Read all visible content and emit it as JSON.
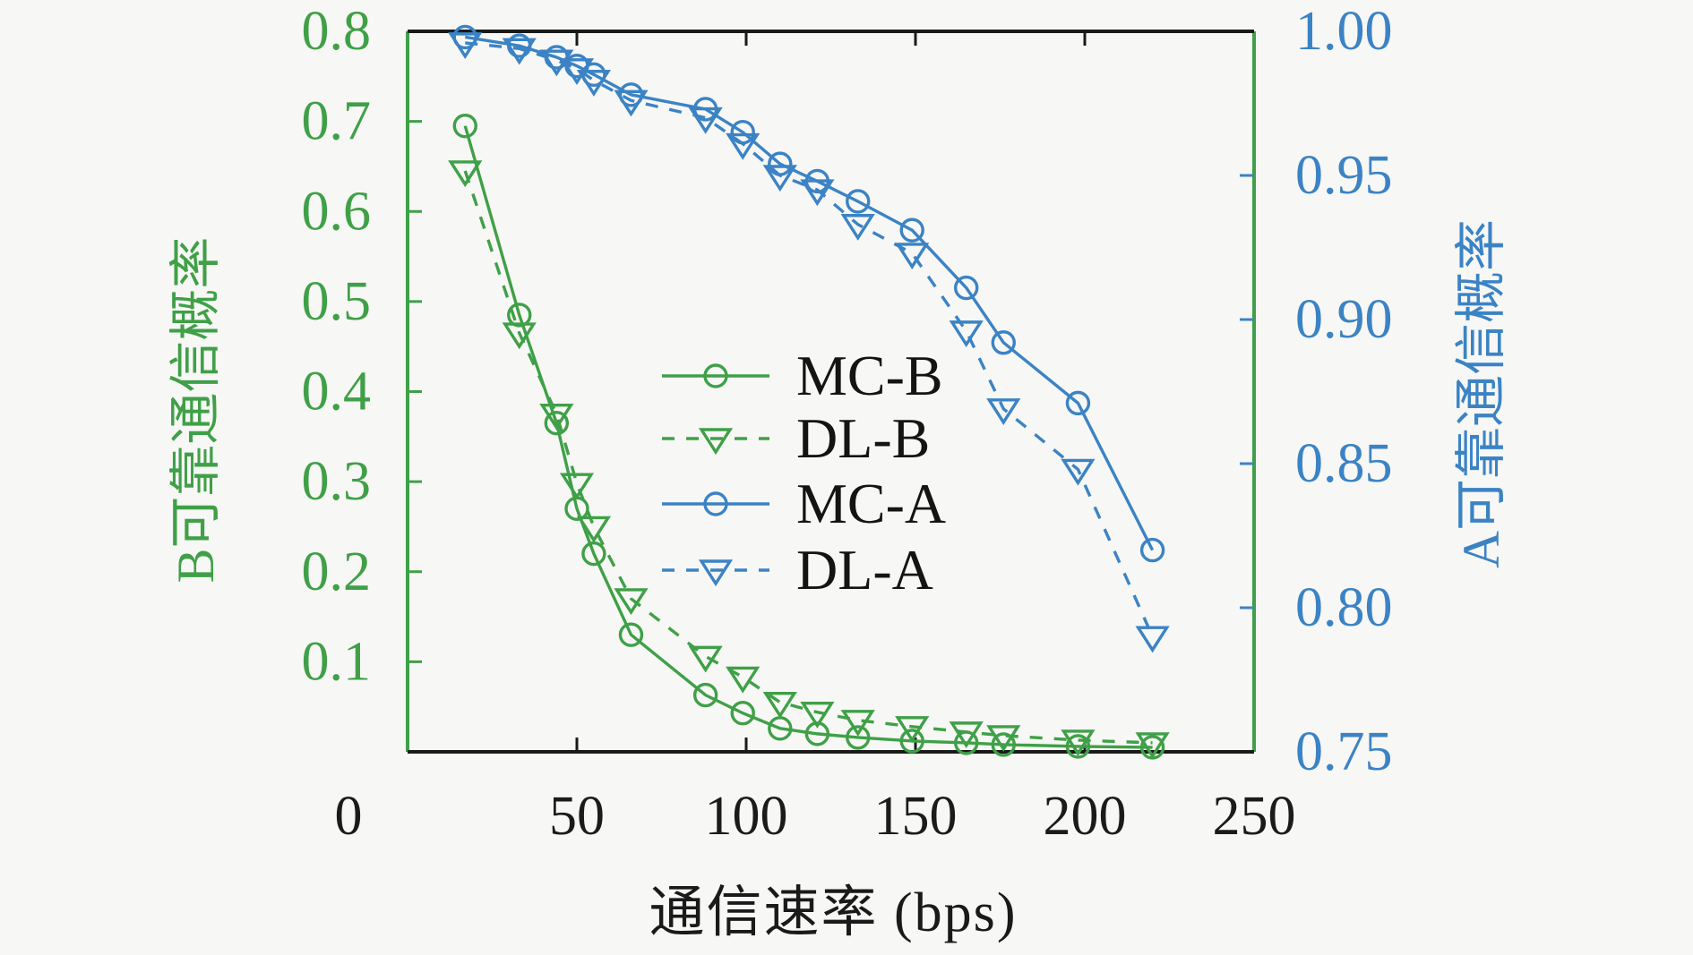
{
  "figure": {
    "background": "#f7f7f5"
  },
  "chart_data": {
    "type": "line",
    "title": "",
    "xlabel": "通信速率 (bps)",
    "xlim": [
      0,
      250
    ],
    "x": [
      17,
      33,
      44,
      50,
      55,
      66,
      88,
      99,
      110,
      121,
      133,
      149,
      165,
      176,
      198,
      220
    ],
    "x_ticks": {
      "values": [
        0,
        50,
        100,
        150,
        200,
        250
      ],
      "labels": [
        "0",
        "50",
        "100",
        "150",
        "200",
        "250"
      ],
      "color": "#1b1b1b"
    },
    "left_axis": {
      "label": "B可靠通信概率",
      "color": "#3fa047",
      "lim": [
        0,
        0.8
      ],
      "tick_values": [
        0.1,
        0.2,
        0.3,
        0.4,
        0.5,
        0.6,
        0.7,
        0.8
      ],
      "tick_labels": [
        "0.1",
        "0.2",
        "0.3",
        "0.4",
        "0.5",
        "0.6",
        "0.7",
        "0.8"
      ]
    },
    "right_axis": {
      "label": "A可靠通信概率",
      "color": "#3b83c4",
      "lim": [
        0.75,
        1.0
      ],
      "tick_values": [
        0.75,
        0.8,
        0.85,
        0.9,
        0.95,
        1.0
      ],
      "tick_labels": [
        "0.75",
        "0.80",
        "0.85",
        "0.90",
        "0.95",
        "1.00"
      ]
    },
    "legend": {
      "frame": false,
      "entries": [
        "MC-B",
        "DL-B",
        "MC-A",
        "DL-A"
      ]
    },
    "series": [
      {
        "name": "MC-B",
        "axis": "left",
        "color": "#3fa047",
        "line": "solid",
        "marker": "circle",
        "values": [
          0.695,
          0.485,
          0.365,
          0.27,
          0.22,
          0.13,
          0.063,
          0.043,
          0.026,
          0.02,
          0.016,
          0.012,
          0.01,
          0.008,
          0.006,
          0.005
        ]
      },
      {
        "name": "DL-B",
        "axis": "left",
        "color": "#3fa047",
        "line": "dashed",
        "marker": "triangle-down",
        "values": [
          0.645,
          0.465,
          0.375,
          0.298,
          0.25,
          0.17,
          0.106,
          0.083,
          0.055,
          0.044,
          0.035,
          0.028,
          0.022,
          0.018,
          0.013,
          0.01
        ]
      },
      {
        "name": "MC-A",
        "axis": "right",
        "color": "#3b83c4",
        "line": "solid",
        "marker": "circle",
        "values": [
          0.998,
          0.995,
          0.991,
          0.988,
          0.985,
          0.978,
          0.973,
          0.965,
          0.954,
          0.948,
          0.941,
          0.931,
          0.911,
          0.892,
          0.871,
          0.82
        ]
      },
      {
        "name": "DL-A",
        "axis": "right",
        "color": "#3b83c4",
        "line": "dashed",
        "marker": "triangle-down",
        "values": [
          0.996,
          0.994,
          0.99,
          0.987,
          0.983,
          0.976,
          0.97,
          0.961,
          0.95,
          0.945,
          0.933,
          0.923,
          0.896,
          0.869,
          0.848,
          0.79
        ]
      }
    ]
  }
}
